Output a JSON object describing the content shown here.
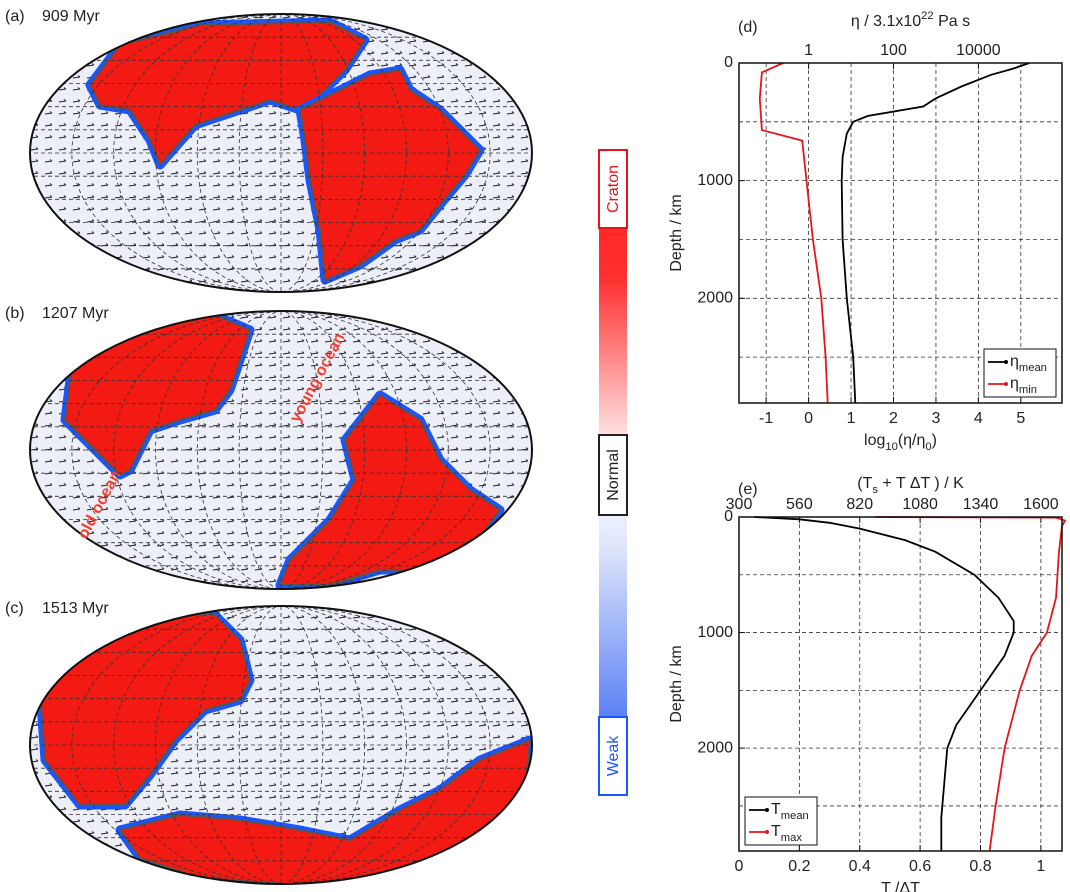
{
  "maps": [
    {
      "panel": "(a)",
      "time": "909 Myr",
      "annotations": []
    },
    {
      "panel": "(b)",
      "time": "1207 Myr",
      "annotations": [
        "young ocean",
        "old ocean"
      ]
    },
    {
      "panel": "(c)",
      "time": "1513 Myr",
      "annotations": []
    }
  ],
  "colorbar": {
    "top": "Craton",
    "middle": "Normal",
    "bottom": "Weak"
  },
  "chart_data": [
    {
      "type": "line",
      "panel": "(d)",
      "title": [
        {
          "t": "η / 3.1x10"
        },
        {
          "sup": "22"
        },
        {
          "t": " Pa s"
        }
      ],
      "xlabel": [
        {
          "t": "log"
        },
        {
          "sub": "10"
        },
        {
          "t": "(η/η"
        },
        {
          "sub": "0"
        },
        {
          "t": ")"
        }
      ],
      "ylabel": "Depth / km",
      "xlim": [
        -1.64,
        5.97
      ],
      "xticks": [
        -1,
        0,
        1,
        2,
        3,
        4,
        5
      ],
      "x2lim": [
        0.0229,
        933000
      ],
      "x2log": true,
      "x2ticks": [
        1,
        100,
        10000
      ],
      "ylim": [
        0,
        2890
      ],
      "yticks": [
        0,
        1000,
        2000
      ],
      "ygrid": [
        500,
        1500,
        2500
      ],
      "grid": true,
      "legend": "lower right",
      "y": [
        [
          0,
          50,
          100,
          200,
          300,
          370,
          450,
          500,
          600,
          800,
          1000,
          1500,
          2000,
          2500,
          2890
        ],
        [
          0,
          80,
          300,
          570,
          660,
          1000,
          1500,
          2000,
          2500,
          2890
        ]
      ],
      "series": [
        {
          "name": [
            {
              "t": "η"
            },
            {
              "sub": "mean"
            }
          ],
          "color": "#000000",
          "yset": 0,
          "values": [
            5.2,
            4.8,
            4.3,
            3.6,
            3.0,
            2.7,
            1.4,
            1.05,
            0.9,
            0.8,
            0.78,
            0.8,
            0.9,
            1.05,
            1.1
          ]
        },
        {
          "name": [
            {
              "t": "η"
            },
            {
              "sub": "min"
            }
          ],
          "color": "#e8141c",
          "yset": 1,
          "values": [
            -0.6,
            -1.1,
            -1.15,
            -1.1,
            -0.15,
            -0.05,
            0.1,
            0.3,
            0.4,
            0.45
          ]
        }
      ]
    },
    {
      "type": "line",
      "panel": "(e)",
      "title": [
        {
          "t": "(T"
        },
        {
          "sub": "s"
        },
        {
          "t": " + T ΔT ) / K"
        }
      ],
      "xlabel": [
        {
          "t": "T /ΔT"
        }
      ],
      "ylabel": "Depth / km",
      "xlim": [
        0,
        1.07
      ],
      "xticks": [
        0,
        0.2,
        0.4,
        0.6,
        0.8,
        1
      ],
      "x2lim": [
        300,
        1691
      ],
      "x2log": false,
      "x2ticks": [
        300,
        560,
        820,
        1080,
        1340,
        1600
      ],
      "ylim": [
        0,
        2890
      ],
      "yticks": [
        0,
        1000,
        2000
      ],
      "ygrid": [
        500,
        1500,
        2500
      ],
      "grid": true,
      "legend": "lower left",
      "y": [
        [
          0,
          20,
          50,
          100,
          200,
          300,
          500,
          700,
          900,
          1000,
          1200,
          1500,
          1800,
          2000,
          2300,
          2600,
          2890
        ],
        [
          0,
          5,
          30,
          80,
          300,
          700,
          1000,
          1200,
          1500,
          2000,
          2500,
          2890
        ]
      ],
      "series": [
        {
          "name": [
            {
              "t": "T"
            },
            {
              "sub": "mean"
            }
          ],
          "color": "#000000",
          "yset": 0,
          "values": [
            0.05,
            0.2,
            0.3,
            0.4,
            0.55,
            0.65,
            0.78,
            0.86,
            0.91,
            0.91,
            0.88,
            0.8,
            0.72,
            0.69,
            0.68,
            0.67,
            0.67
          ]
        },
        {
          "name": [
            {
              "t": "T"
            },
            {
              "sub": "max"
            }
          ],
          "color": "#e8141c",
          "yset": 1,
          "values": [
            0.45,
            1.05,
            1.08,
            1.07,
            1.06,
            1.05,
            1.02,
            0.97,
            0.93,
            0.88,
            0.85,
            0.83
          ]
        }
      ]
    }
  ]
}
